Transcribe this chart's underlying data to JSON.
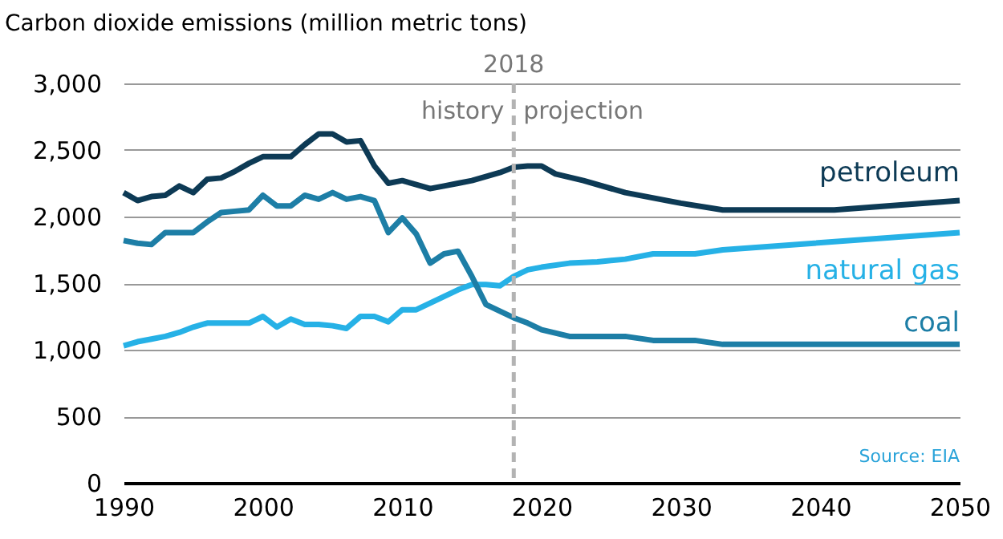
{
  "chart_data": {
    "type": "line",
    "title": "Carbon dioxide emissions (million metric tons)",
    "xlim": [
      1990,
      2050
    ],
    "xticks": [
      1990,
      2000,
      2010,
      2020,
      2030,
      2040,
      2050
    ],
    "ylim": [
      0,
      3000
    ],
    "yticks": [
      0,
      500,
      {
        "value": 1000,
        "label": "1,000"
      },
      {
        "value": 1500,
        "label": "1,500"
      },
      {
        "value": 2000,
        "label": "2,000"
      },
      {
        "value": 2500,
        "label": "2,500"
      },
      {
        "value": 3000,
        "label": "3,000"
      }
    ],
    "grid": "y",
    "legend": false,
    "line_style": "solid",
    "marker": "none",
    "ref_lines": [
      {
        "axis": "x",
        "value": 2018,
        "label": "2018",
        "color": "#b3b3b3",
        "line_style": "dashed"
      }
    ],
    "annotations": [
      "history",
      "projection",
      "Source: EIA"
    ],
    "series": [
      {
        "name": "petroleum",
        "color": "#0d3a55",
        "x": [
          1990,
          1991,
          1992,
          1993,
          1994,
          1995,
          1996,
          1997,
          1998,
          1999,
          2000,
          2001,
          2002,
          2003,
          2004,
          2005,
          2006,
          2007,
          2008,
          2009,
          2010,
          2011,
          2012,
          2013,
          2014,
          2015,
          2016,
          2017,
          2018,
          2019,
          2020,
          2021,
          2023,
          2026,
          2030,
          2033,
          2041,
          2050
        ],
        "values": [
          2180,
          2120,
          2150,
          2160,
          2230,
          2180,
          2280,
          2290,
          2340,
          2400,
          2450,
          2450,
          2450,
          2540,
          2620,
          2620,
          2560,
          2570,
          2380,
          2250,
          2270,
          2240,
          2210,
          2230,
          2250,
          2270,
          2300,
          2330,
          2370,
          2380,
          2380,
          2320,
          2270,
          2180,
          2100,
          2050,
          2050,
          2120
        ]
      },
      {
        "name": "natural gas",
        "color": "#26b1e6",
        "x": [
          1990,
          1991,
          1992,
          1993,
          1994,
          1995,
          1996,
          1997,
          1998,
          1999,
          2000,
          2001,
          2002,
          2003,
          2004,
          2005,
          2006,
          2007,
          2008,
          2009,
          2010,
          2011,
          2012,
          2013,
          2014,
          2015,
          2016,
          2017,
          2018,
          2019,
          2020,
          2022,
          2024,
          2026,
          2028,
          2031,
          2033,
          2050
        ],
        "values": [
          1030,
          1060,
          1080,
          1100,
          1130,
          1170,
          1200,
          1200,
          1200,
          1200,
          1250,
          1170,
          1230,
          1190,
          1190,
          1180,
          1160,
          1250,
          1250,
          1210,
          1300,
          1300,
          1350,
          1400,
          1450,
          1490,
          1490,
          1480,
          1550,
          1600,
          1620,
          1650,
          1660,
          1680,
          1720,
          1720,
          1750,
          1880
        ]
      },
      {
        "name": "coal",
        "color": "#1d7ea6",
        "x": [
          1990,
          1991,
          1992,
          1993,
          1994,
          1995,
          1996,
          1997,
          1998,
          1999,
          2000,
          2001,
          2002,
          2003,
          2004,
          2005,
          2006,
          2007,
          2008,
          2009,
          2010,
          2011,
          2012,
          2013,
          2014,
          2015,
          2016,
          2017,
          2018,
          2019,
          2020,
          2022,
          2026,
          2028,
          2031,
          2033,
          2050
        ],
        "values": [
          1820,
          1800,
          1790,
          1880,
          1880,
          1880,
          1960,
          2030,
          2040,
          2050,
          2160,
          2080,
          2080,
          2160,
          2130,
          2180,
          2130,
          2150,
          2120,
          1880,
          1990,
          1870,
          1650,
          1720,
          1740,
          1550,
          1340,
          1290,
          1240,
          1200,
          1150,
          1100,
          1100,
          1070,
          1070,
          1040,
          1040
        ]
      }
    ]
  }
}
